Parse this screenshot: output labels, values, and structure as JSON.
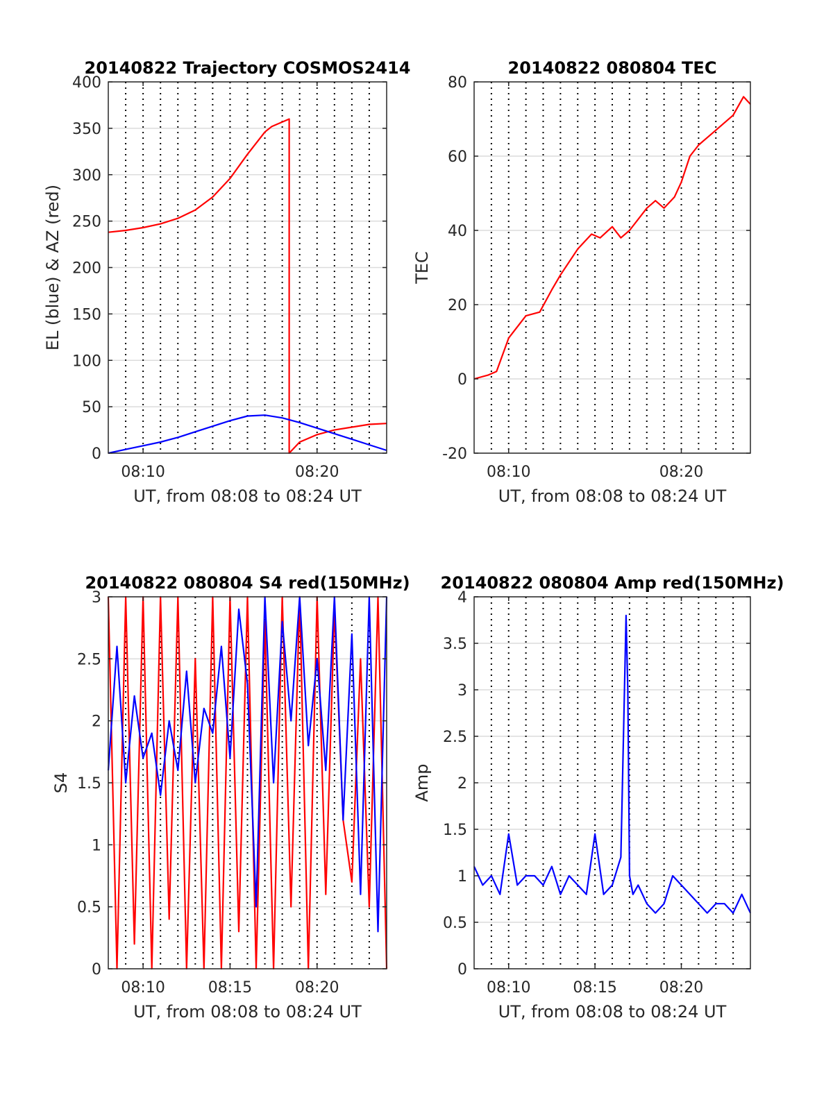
{
  "chart_data": [
    {
      "type": "line",
      "title": "20140822 Trajectory COSMOS2414",
      "xlabel": "UT, from 08:08 to 08:24 UT",
      "ylabel": "EL (blue) & AZ (red)",
      "xlim": [
        "08:08",
        "08:24"
      ],
      "ylim": [
        0,
        400
      ],
      "yticks": [
        0,
        50,
        100,
        150,
        200,
        250,
        300,
        350,
        400
      ],
      "xticks": [
        "08:10",
        "08:20"
      ],
      "grid": true,
      "series": [
        {
          "color": "#ff0000",
          "x": [
            "08:08",
            "08:09",
            "08:10",
            "08:11",
            "08:12",
            "08:13",
            "08:14",
            "08:15",
            "08:16",
            "08:17",
            "08:17.4",
            "08:18.4",
            "08:18.4",
            "08:19",
            "08:20",
            "08:21",
            "08:22",
            "08:23",
            "08:24"
          ],
          "values": [
            238,
            240,
            243,
            247,
            253,
            262,
            276,
            296,
            322,
            346,
            352,
            360,
            0,
            12,
            20,
            25,
            28,
            31,
            32
          ]
        },
        {
          "color": "#0000ff",
          "x": [
            "08:08",
            "08:09",
            "08:10",
            "08:11",
            "08:12",
            "08:13",
            "08:14",
            "08:15",
            "08:16",
            "08:17",
            "08:18",
            "08:19",
            "08:20",
            "08:21",
            "08:22",
            "08:23",
            "08:24"
          ],
          "values": [
            0,
            4,
            8,
            12,
            17,
            23,
            29,
            35,
            40,
            41,
            38,
            33,
            27,
            21,
            15,
            9,
            3
          ]
        }
      ]
    },
    {
      "type": "line",
      "title": "20140822 080804 TEC",
      "xlabel": "UT, from 08:08 to 08:24 UT",
      "ylabel": "TEC",
      "xlim": [
        "08:08",
        "08:24"
      ],
      "ylim": [
        -20,
        80
      ],
      "yticks": [
        -20,
        0,
        20,
        40,
        60,
        80
      ],
      "xticks": [
        "08:10",
        "08:20"
      ],
      "grid": true,
      "series": [
        {
          "color": "#ff0000",
          "x": [
            "08:08",
            "08:08.8",
            "08:09.3",
            "08:10",
            "08:11",
            "08:11.8",
            "08:12.5",
            "08:13",
            "08:14",
            "08:14.8",
            "08:15.3",
            "08:16",
            "08:16.5",
            "08:17",
            "08:18",
            "08:18.5",
            "08:19",
            "08:19.6",
            "08:20",
            "08:20.5",
            "08:21",
            "08:21.5",
            "08:22",
            "08:23",
            "08:23.6",
            "08:24"
          ],
          "values": [
            0,
            1,
            2,
            11,
            17,
            18,
            24,
            28,
            35,
            39,
            38,
            41,
            38,
            40,
            46,
            48,
            46,
            49,
            53,
            60,
            63,
            65,
            67,
            71,
            76,
            74
          ]
        }
      ]
    },
    {
      "type": "line",
      "title": "20140822 080804 S4 red(150MHz)",
      "xlabel": "UT, from 08:08 to 08:24 UT",
      "ylabel": "S4",
      "xlim": [
        "08:08",
        "08:24"
      ],
      "ylim": [
        0,
        3
      ],
      "yticks": [
        0,
        0.5,
        1,
        1.5,
        2,
        2.5,
        3
      ],
      "xticks": [
        "08:10",
        "08:15",
        "08:20"
      ],
      "grid": true,
      "series": [
        {
          "color": "#ff0000",
          "x": [
            "08:08",
            "08:08.5",
            "08:09",
            "08:09.5",
            "08:10",
            "08:10.5",
            "08:11",
            "08:11.5",
            "08:12",
            "08:12.5",
            "08:13",
            "08:13.5",
            "08:14",
            "08:14.5",
            "08:15",
            "08:15.5",
            "08:16",
            "08:16.5",
            "08:17",
            "08:17.5",
            "08:18",
            "08:18.5",
            "08:19",
            "08:19.5",
            "08:20",
            "08:20.5",
            "08:21",
            "08:21.5",
            "08:22",
            "08:22.5",
            "08:23",
            "08:23.5",
            "08:24"
          ],
          "values": [
            3,
            0,
            3,
            0.2,
            3,
            0,
            3,
            0.4,
            3,
            0,
            2.5,
            0,
            3,
            0,
            3,
            0.3,
            3,
            0,
            2.8,
            0,
            3,
            0.5,
            3,
            0,
            3,
            0.6,
            2.9,
            1.2,
            0.7,
            2.5,
            0.5,
            3,
            0
          ]
        },
        {
          "color": "#0000ff",
          "x": [
            "08:08",
            "08:08.5",
            "08:09",
            "08:09.5",
            "08:10",
            "08:10.5",
            "08:11",
            "08:11.5",
            "08:12",
            "08:12.5",
            "08:13",
            "08:13.5",
            "08:14",
            "08:14.5",
            "08:15",
            "08:15.5",
            "08:16",
            "08:16.5",
            "08:17",
            "08:17.5",
            "08:18",
            "08:18.5",
            "08:19",
            "08:19.5",
            "08:20",
            "08:20.5",
            "08:21",
            "08:21.5",
            "08:22",
            "08:22.5",
            "08:23",
            "08:23.5",
            "08:24"
          ],
          "values": [
            1.6,
            2.6,
            1.5,
            2.2,
            1.7,
            1.9,
            1.4,
            2.0,
            1.6,
            2.4,
            1.5,
            2.1,
            1.9,
            2.6,
            1.7,
            2.9,
            2.3,
            0.5,
            3,
            1.5,
            2.8,
            2.0,
            3,
            1.8,
            2.5,
            1.6,
            3,
            1.2,
            2.7,
            0.6,
            3,
            0.3,
            3
          ]
        }
      ]
    },
    {
      "type": "line",
      "title": "20140822 080804 Amp red(150MHz)",
      "xlabel": "UT, from 08:08 to 08:24 UT",
      "ylabel": "Amp",
      "xlim": [
        "08:08",
        "08:24"
      ],
      "ylim": [
        0,
        4
      ],
      "yticks": [
        0,
        0.5,
        1,
        1.5,
        2,
        2.5,
        3,
        3.5,
        4
      ],
      "xticks": [
        "08:10",
        "08:15",
        "08:20"
      ],
      "grid": true,
      "series": [
        {
          "color": "#0000ff",
          "x": [
            "08:08",
            "08:08.5",
            "08:09",
            "08:09.5",
            "08:10",
            "08:10.5",
            "08:11",
            "08:11.5",
            "08:12",
            "08:12.5",
            "08:13",
            "08:13.5",
            "08:14",
            "08:14.5",
            "08:15",
            "08:15.5",
            "08:16",
            "08:16.5",
            "08:16.8",
            "08:16.9",
            "08:17",
            "08:17.2",
            "08:17.5",
            "08:18",
            "08:18.5",
            "08:19",
            "08:19.5",
            "08:20",
            "08:20.5",
            "08:21",
            "08:21.5",
            "08:22",
            "08:22.5",
            "08:23",
            "08:23.5",
            "08:24"
          ],
          "values": [
            1.1,
            0.9,
            1.0,
            0.8,
            1.45,
            0.9,
            1.0,
            1.0,
            0.9,
            1.1,
            0.8,
            1.0,
            0.9,
            0.8,
            1.45,
            0.8,
            0.9,
            1.2,
            3.8,
            3.0,
            1.0,
            0.8,
            0.9,
            0.7,
            0.6,
            0.7,
            1.0,
            0.9,
            0.8,
            0.7,
            0.6,
            0.7,
            0.7,
            0.6,
            0.8,
            0.6
          ]
        }
      ]
    }
  ]
}
